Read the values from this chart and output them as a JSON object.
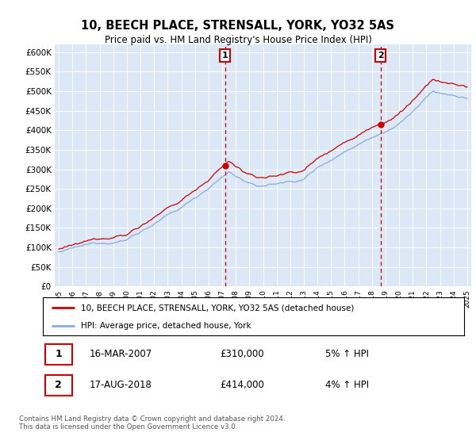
{
  "title": "10, BEECH PLACE, STRENSALL, YORK, YO32 5AS",
  "subtitle": "Price paid vs. HM Land Registry's House Price Index (HPI)",
  "ylim": [
    0,
    620000
  ],
  "yticks": [
    0,
    50000,
    100000,
    150000,
    200000,
    250000,
    300000,
    350000,
    400000,
    450000,
    500000,
    550000,
    600000
  ],
  "property_color": "#cc0000",
  "hpi_color": "#88aadd",
  "background_color": "#dce8f5",
  "grid_color": "#ffffff",
  "legend_label_property": "10, BEECH PLACE, STRENSALL, YORK, YO32 5AS (detached house)",
  "legend_label_hpi": "HPI: Average price, detached house, York",
  "sale1_date": "16-MAR-2007",
  "sale1_price": "£310,000",
  "sale1_hpi": "5% ↑ HPI",
  "sale1_year": 2007.21,
  "sale1_value": 310000,
  "sale2_date": "17-AUG-2018",
  "sale2_price": "£414,000",
  "sale2_hpi": "4% ↑ HPI",
  "sale2_year": 2018.63,
  "sale2_value": 414000,
  "footer": "Contains HM Land Registry data © Crown copyright and database right 2024.\nThis data is licensed under the Open Government Licence v3.0."
}
